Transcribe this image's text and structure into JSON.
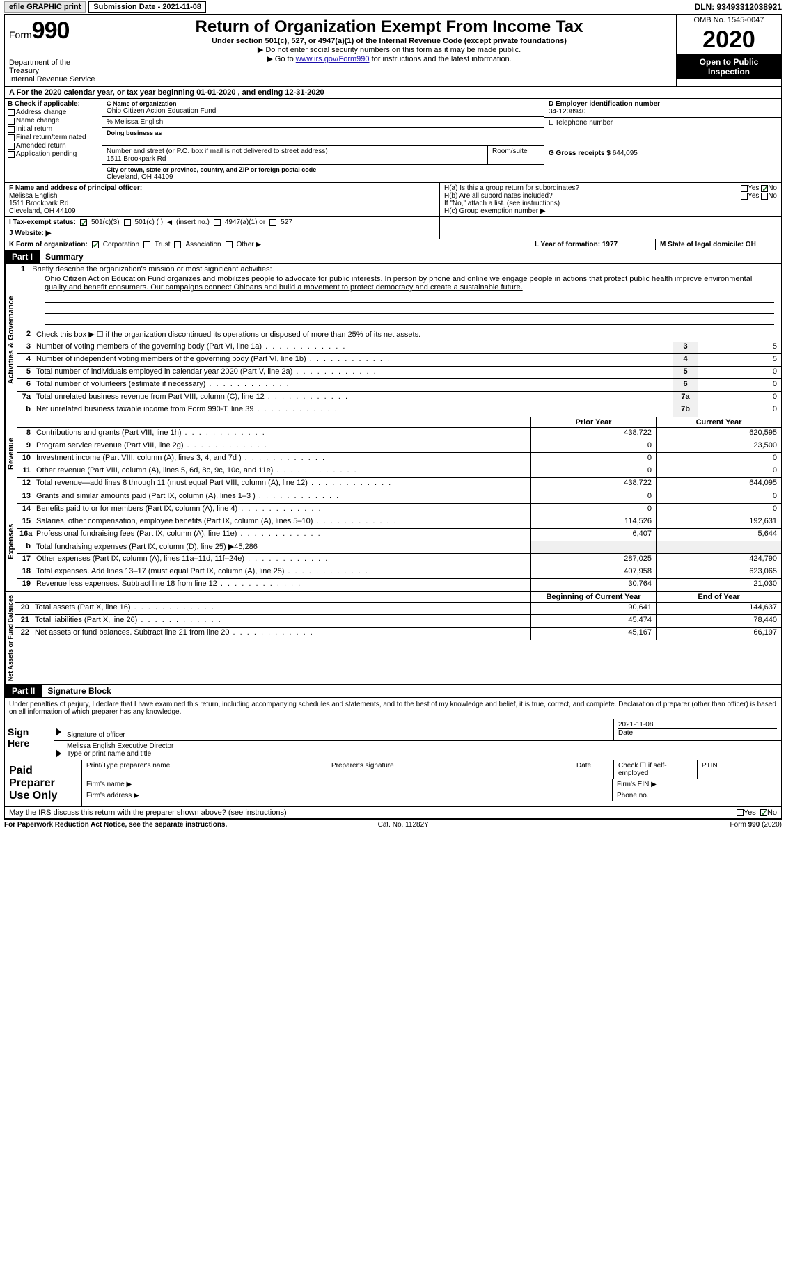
{
  "topbar": {
    "efile": "efile GRAPHIC print",
    "submission": "Submission Date - 2021-11-08",
    "dln": "DLN: 93493312038921"
  },
  "header": {
    "form_prefix": "Form",
    "form_num": "990",
    "dept": "Department of the Treasury\nInternal Revenue Service",
    "title": "Return of Organization Exempt From Income Tax",
    "sub": "Under section 501(c), 527, or 4947(a)(1) of the Internal Revenue Code (except private foundations)",
    "note1": "▶ Do not enter social security numbers on this form as it may be made public.",
    "note2_pre": "▶ Go to ",
    "note2_link": "www.irs.gov/Form990",
    "note2_post": " for instructions and the latest information.",
    "omb": "OMB No. 1545-0047",
    "year": "2020",
    "open": "Open to Public Inspection"
  },
  "row_a": "A For the 2020 calendar year, or tax year beginning 01-01-2020    , and ending 12-31-2020",
  "col_b": {
    "header": "B Check if applicable:",
    "items": [
      "Address change",
      "Name change",
      "Initial return",
      "Final return/terminated",
      "Amended return",
      "Application pending"
    ]
  },
  "section_c": {
    "label": "C Name of organization",
    "org": "Ohio Citizen Action Education Fund",
    "care_of": "% Melissa English",
    "dba_lbl": "Doing business as",
    "addr_lbl": "Number and street (or P.O. box if mail is not delivered to street address)",
    "room_lbl": "Room/suite",
    "addr": "1511 Brookpark Rd",
    "city_lbl": "City or town, state or province, country, and ZIP or foreign postal code",
    "city": "Cleveland, OH  44109"
  },
  "section_d": {
    "d_lbl": "D Employer identification number",
    "d_val": "34-1208940",
    "e_lbl": "E Telephone number",
    "g_lbl": "G Gross receipts $",
    "g_val": "644,095"
  },
  "section_f": {
    "f_lbl": "F Name and address of principal officer:",
    "f_name": "Melissa English",
    "f_addr1": "1511 Brookpark Rd",
    "f_addr2": "Cleveland, OH  44109"
  },
  "section_h": {
    "ha": "H(a)  Is this a group return for subordinates?",
    "hb": "H(b)  Are all subordinates included?",
    "hb_note": "If \"No,\" attach a list. (see instructions)",
    "hc": "H(c)  Group exemption number ▶"
  },
  "row_i": {
    "lbl": "I  Tax-exempt status:",
    "opts": [
      "501(c)(3)",
      "501(c) (  )",
      "(insert no.)",
      "4947(a)(1) or",
      "527"
    ]
  },
  "row_j": "J  Website: ▶",
  "row_k": {
    "lbl": "K Form of organization:",
    "opts": [
      "Corporation",
      "Trust",
      "Association",
      "Other ▶"
    ],
    "l": "L Year of formation: 1977",
    "m": "M State of legal domicile: OH"
  },
  "part1": {
    "part": "Part I",
    "title": "Summary"
  },
  "activities": {
    "side": "Activities & Governance",
    "line1_lbl": "1",
    "line1_desc": "Briefly describe the organization's mission or most significant activities:",
    "mission": "Ohio Citizen Action Education Fund organizes and mobilizes people to advocate for public interests. In person by phone and online we engage people in actions that protect public health improve environmental quality and benefit consumers. Our campaigns connect Ohioans and build a movement to protect democracy and create a sustainable future.",
    "line2": "Check this box ▶ ☐ if the organization discontinued its operations or disposed of more than 25% of its net assets.",
    "rows": [
      {
        "n": "3",
        "d": "Number of voting members of the governing body (Part VI, line 1a)",
        "box": "3",
        "v": "5"
      },
      {
        "n": "4",
        "d": "Number of independent voting members of the governing body (Part VI, line 1b)",
        "box": "4",
        "v": "5"
      },
      {
        "n": "5",
        "d": "Total number of individuals employed in calendar year 2020 (Part V, line 2a)",
        "box": "5",
        "v": "0"
      },
      {
        "n": "6",
        "d": "Total number of volunteers (estimate if necessary)",
        "box": "6",
        "v": "0"
      },
      {
        "n": "7a",
        "d": "Total unrelated business revenue from Part VIII, column (C), line 12",
        "box": "7a",
        "v": "0"
      },
      {
        "n": "b",
        "d": "Net unrelated business taxable income from Form 990-T, line 39",
        "box": "7b",
        "v": "0"
      }
    ]
  },
  "revenue": {
    "side": "Revenue",
    "hdr_prior": "Prior Year",
    "hdr_curr": "Current Year",
    "rows": [
      {
        "n": "8",
        "d": "Contributions and grants (Part VIII, line 1h)",
        "p": "438,722",
        "c": "620,595"
      },
      {
        "n": "9",
        "d": "Program service revenue (Part VIII, line 2g)",
        "p": "0",
        "c": "23,500"
      },
      {
        "n": "10",
        "d": "Investment income (Part VIII, column (A), lines 3, 4, and 7d )",
        "p": "0",
        "c": "0"
      },
      {
        "n": "11",
        "d": "Other revenue (Part VIII, column (A), lines 5, 6d, 8c, 9c, 10c, and 11e)",
        "p": "0",
        "c": "0"
      },
      {
        "n": "12",
        "d": "Total revenue—add lines 8 through 11 (must equal Part VIII, column (A), line 12)",
        "p": "438,722",
        "c": "644,095"
      }
    ]
  },
  "expenses": {
    "side": "Expenses",
    "rows": [
      {
        "n": "13",
        "d": "Grants and similar amounts paid (Part IX, column (A), lines 1–3 )",
        "p": "0",
        "c": "0"
      },
      {
        "n": "14",
        "d": "Benefits paid to or for members (Part IX, column (A), line 4)",
        "p": "0",
        "c": "0"
      },
      {
        "n": "15",
        "d": "Salaries, other compensation, employee benefits (Part IX, column (A), lines 5–10)",
        "p": "114,526",
        "c": "192,631"
      },
      {
        "n": "16a",
        "d": "Professional fundraising fees (Part IX, column (A), line 11e)",
        "p": "6,407",
        "c": "5,644"
      },
      {
        "n": "b",
        "d": "Total fundraising expenses (Part IX, column (D), line 25) ▶45,286",
        "p": "",
        "c": "",
        "noval": true
      },
      {
        "n": "17",
        "d": "Other expenses (Part IX, column (A), lines 11a–11d, 11f–24e)",
        "p": "287,025",
        "c": "424,790"
      },
      {
        "n": "18",
        "d": "Total expenses. Add lines 13–17 (must equal Part IX, column (A), line 25)",
        "p": "407,958",
        "c": "623,065"
      },
      {
        "n": "19",
        "d": "Revenue less expenses. Subtract line 18 from line 12",
        "p": "30,764",
        "c": "21,030"
      }
    ]
  },
  "netassets": {
    "side": "Net Assets or Fund Balances",
    "hdr_beg": "Beginning of Current Year",
    "hdr_end": "End of Year",
    "rows": [
      {
        "n": "20",
        "d": "Total assets (Part X, line 16)",
        "p": "90,641",
        "c": "144,637"
      },
      {
        "n": "21",
        "d": "Total liabilities (Part X, line 26)",
        "p": "45,474",
        "c": "78,440"
      },
      {
        "n": "22",
        "d": "Net assets or fund balances. Subtract line 21 from line 20",
        "p": "45,167",
        "c": "66,197"
      }
    ]
  },
  "part2": {
    "part": "Part II",
    "title": "Signature Block",
    "decl": "Under penalties of perjury, I declare that I have examined this return, including accompanying schedules and statements, and to the best of my knowledge and belief, it is true, correct, and complete. Declaration of preparer (other than officer) is based on all information of which preparer has any knowledge."
  },
  "sign": {
    "label": "Sign Here",
    "sig_lbl": "Signature of officer",
    "date": "2021-11-08",
    "date_lbl": "Date",
    "name": "Melissa English  Executive Director",
    "name_lbl": "Type or print name and title"
  },
  "prep": {
    "label": "Paid Preparer Use Only",
    "c1": "Print/Type preparer's name",
    "c2": "Preparer's signature",
    "c3": "Date",
    "c4": "Check ☐ if self-employed",
    "c5": "PTIN",
    "firm_name": "Firm's name    ▶",
    "firm_ein": "Firm's EIN ▶",
    "firm_addr": "Firm's address ▶",
    "phone": "Phone no."
  },
  "discuss": {
    "q": "May the IRS discuss this return with the preparer shown above? (see instructions)",
    "yes": "Yes",
    "no": "No"
  },
  "footer": {
    "l": "For Paperwork Reduction Act Notice, see the separate instructions.",
    "m": "Cat. No. 11282Y",
    "r": "Form 990 (2020)"
  },
  "yes": "Yes",
  "no": "No"
}
